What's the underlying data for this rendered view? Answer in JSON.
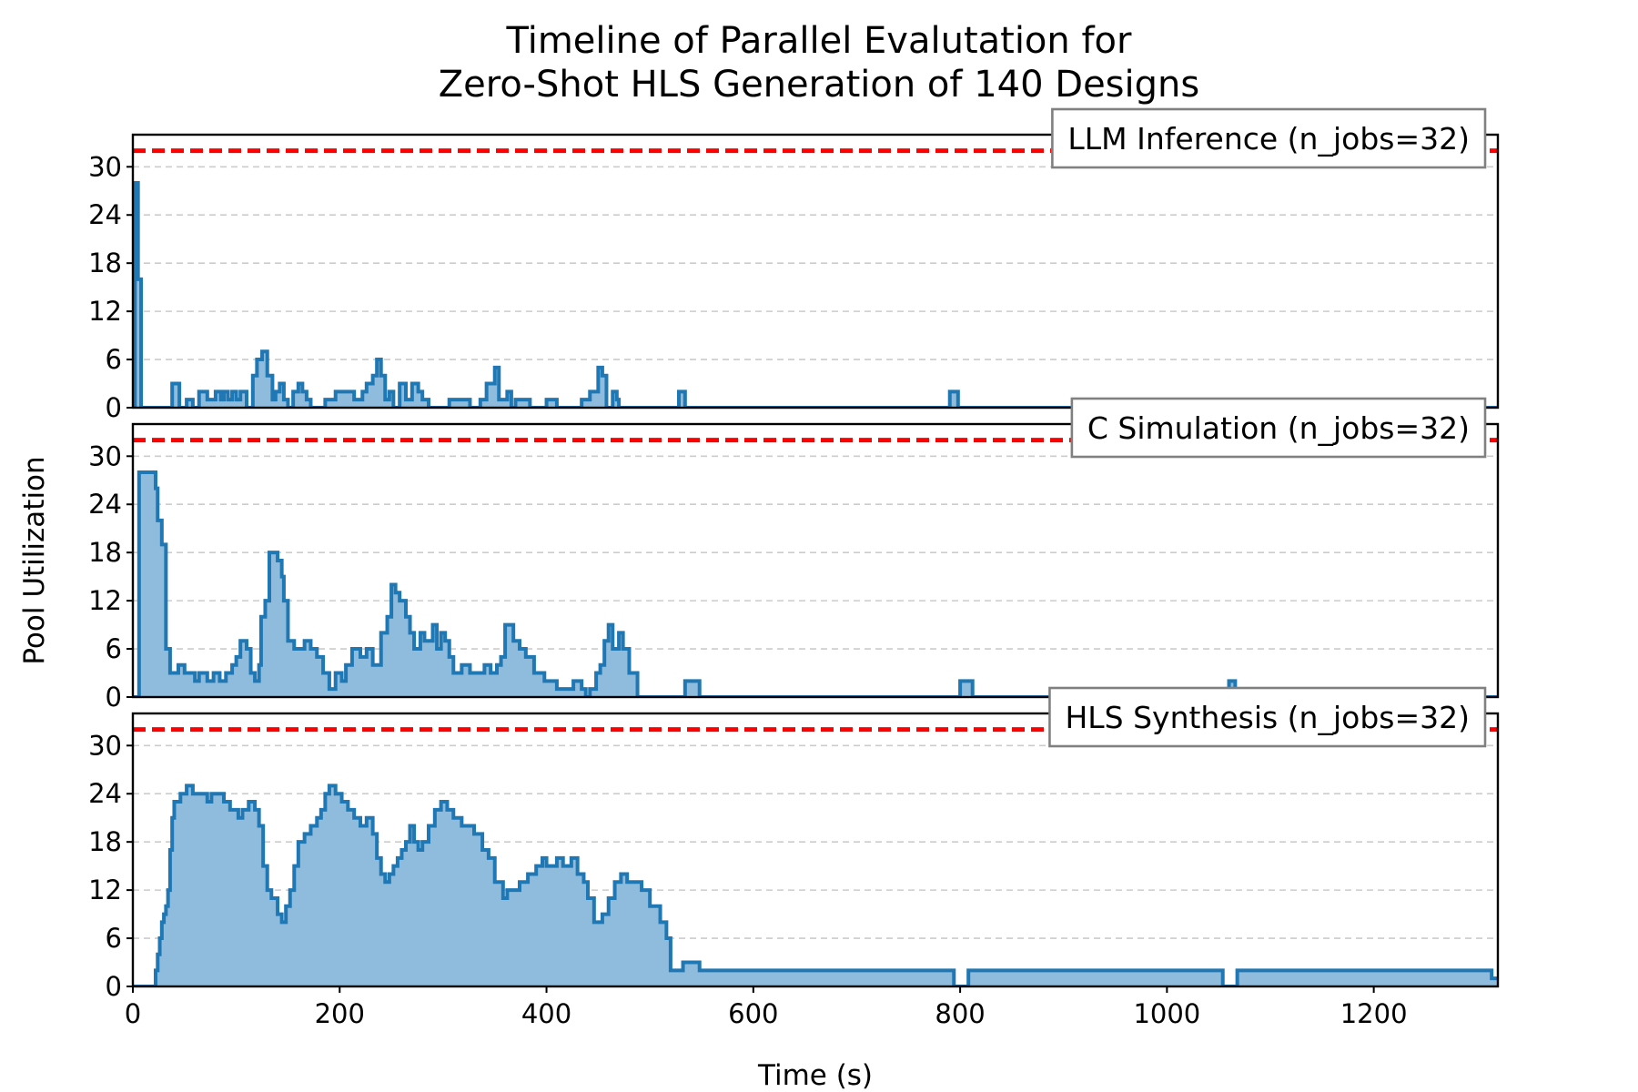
{
  "chart_data": {
    "type": "area",
    "title_lines": [
      "Timeline of Parallel Evalutation for",
      "Zero-Shot HLS Generation of 140 Designs"
    ],
    "xlabel": "Time (s)",
    "ylabel": "Pool Utilization",
    "xlim": [
      0,
      1320
    ],
    "xticks": [
      0,
      200,
      400,
      600,
      800,
      1000,
      1200
    ],
    "ylim": [
      0,
      34
    ],
    "yticks": [
      0,
      6,
      12,
      18,
      24,
      30
    ],
    "grid": "horizontal dashed",
    "colors": {
      "series": "#1f77b4",
      "fill": "#8fbbdc",
      "cap": "#ff0000"
    },
    "panels": [
      {
        "label": "LLM Inference (n_jobs=32)",
        "cap": 32,
        "points": [
          [
            0,
            0
          ],
          [
            2,
            28
          ],
          [
            5,
            16
          ],
          [
            8,
            0
          ],
          [
            36,
            0
          ],
          [
            38,
            3
          ],
          [
            45,
            0
          ],
          [
            52,
            1
          ],
          [
            58,
            0
          ],
          [
            64,
            2
          ],
          [
            72,
            1
          ],
          [
            80,
            2
          ],
          [
            85,
            1
          ],
          [
            88,
            2
          ],
          [
            92,
            1
          ],
          [
            96,
            2
          ],
          [
            100,
            1
          ],
          [
            104,
            2
          ],
          [
            110,
            0
          ],
          [
            116,
            4
          ],
          [
            120,
            6
          ],
          [
            125,
            7
          ],
          [
            130,
            4
          ],
          [
            135,
            1
          ],
          [
            138,
            2
          ],
          [
            142,
            3
          ],
          [
            146,
            1
          ],
          [
            150,
            0
          ],
          [
            155,
            2
          ],
          [
            160,
            3
          ],
          [
            164,
            2
          ],
          [
            168,
            1
          ],
          [
            172,
            0
          ],
          [
            186,
            1
          ],
          [
            196,
            2
          ],
          [
            214,
            1
          ],
          [
            222,
            2
          ],
          [
            226,
            3
          ],
          [
            232,
            4
          ],
          [
            236,
            6
          ],
          [
            240,
            4
          ],
          [
            244,
            1
          ],
          [
            248,
            2
          ],
          [
            252,
            0
          ],
          [
            258,
            3
          ],
          [
            264,
            1
          ],
          [
            270,
            3
          ],
          [
            276,
            2
          ],
          [
            280,
            1
          ],
          [
            286,
            0
          ],
          [
            306,
            1
          ],
          [
            326,
            0
          ],
          [
            336,
            1
          ],
          [
            342,
            3
          ],
          [
            350,
            5
          ],
          [
            354,
            1
          ],
          [
            362,
            2
          ],
          [
            366,
            0
          ],
          [
            370,
            1
          ],
          [
            384,
            0
          ],
          [
            400,
            1
          ],
          [
            410,
            0
          ],
          [
            434,
            1
          ],
          [
            442,
            2
          ],
          [
            450,
            5
          ],
          [
            454,
            4
          ],
          [
            458,
            0
          ],
          [
            464,
            2
          ],
          [
            468,
            1
          ],
          [
            470,
            0
          ],
          [
            528,
            2
          ],
          [
            534,
            0
          ],
          [
            790,
            2
          ],
          [
            798,
            0
          ],
          [
            1320,
            0
          ]
        ]
      },
      {
        "label": "C Simulation (n_jobs=32)",
        "cap": 32,
        "points": [
          [
            0,
            0
          ],
          [
            6,
            28
          ],
          [
            22,
            26
          ],
          [
            24,
            22
          ],
          [
            28,
            19
          ],
          [
            32,
            6
          ],
          [
            36,
            3
          ],
          [
            44,
            4
          ],
          [
            50,
            3
          ],
          [
            60,
            2
          ],
          [
            64,
            3
          ],
          [
            72,
            2
          ],
          [
            78,
            3
          ],
          [
            84,
            2
          ],
          [
            90,
            3
          ],
          [
            96,
            4
          ],
          [
            100,
            5
          ],
          [
            104,
            7
          ],
          [
            110,
            6
          ],
          [
            114,
            3
          ],
          [
            118,
            2
          ],
          [
            122,
            4
          ],
          [
            124,
            10
          ],
          [
            128,
            12
          ],
          [
            132,
            18
          ],
          [
            140,
            17
          ],
          [
            144,
            15
          ],
          [
            146,
            12
          ],
          [
            150,
            7
          ],
          [
            156,
            6
          ],
          [
            166,
            7
          ],
          [
            172,
            6
          ],
          [
            178,
            5
          ],
          [
            184,
            3
          ],
          [
            190,
            1
          ],
          [
            196,
            3
          ],
          [
            202,
            2
          ],
          [
            206,
            4
          ],
          [
            212,
            6
          ],
          [
            220,
            5
          ],
          [
            226,
            6
          ],
          [
            232,
            4
          ],
          [
            240,
            8
          ],
          [
            246,
            10
          ],
          [
            250,
            14
          ],
          [
            254,
            13
          ],
          [
            258,
            12
          ],
          [
            264,
            10
          ],
          [
            268,
            8
          ],
          [
            272,
            6
          ],
          [
            278,
            8
          ],
          [
            282,
            7
          ],
          [
            290,
            9
          ],
          [
            294,
            6
          ],
          [
            298,
            8
          ],
          [
            302,
            7
          ],
          [
            306,
            5
          ],
          [
            310,
            3
          ],
          [
            318,
            4
          ],
          [
            326,
            3
          ],
          [
            340,
            4
          ],
          [
            346,
            3
          ],
          [
            352,
            4
          ],
          [
            356,
            5
          ],
          [
            360,
            9
          ],
          [
            368,
            7
          ],
          [
            374,
            6
          ],
          [
            380,
            5
          ],
          [
            388,
            3
          ],
          [
            398,
            2
          ],
          [
            410,
            1
          ],
          [
            426,
            2
          ],
          [
            434,
            1
          ],
          [
            438,
            0
          ],
          [
            442,
            1
          ],
          [
            448,
            3
          ],
          [
            452,
            4
          ],
          [
            456,
            7
          ],
          [
            460,
            9
          ],
          [
            464,
            6
          ],
          [
            470,
            8
          ],
          [
            474,
            6
          ],
          [
            480,
            3
          ],
          [
            488,
            0
          ],
          [
            534,
            2
          ],
          [
            548,
            0
          ],
          [
            800,
            2
          ],
          [
            812,
            0
          ],
          [
            1060,
            2
          ],
          [
            1066,
            0
          ],
          [
            1320,
            0
          ]
        ]
      },
      {
        "label": "HLS Synthesis (n_jobs=32)",
        "cap": 32,
        "points": [
          [
            0,
            0
          ],
          [
            20,
            0
          ],
          [
            22,
            2
          ],
          [
            24,
            4
          ],
          [
            26,
            6
          ],
          [
            28,
            8
          ],
          [
            30,
            9
          ],
          [
            32,
            10
          ],
          [
            34,
            12
          ],
          [
            36,
            17
          ],
          [
            38,
            21
          ],
          [
            40,
            23
          ],
          [
            46,
            24
          ],
          [
            52,
            25
          ],
          [
            58,
            24
          ],
          [
            72,
            23
          ],
          [
            76,
            24
          ],
          [
            88,
            23
          ],
          [
            94,
            22
          ],
          [
            102,
            21
          ],
          [
            106,
            22
          ],
          [
            112,
            23
          ],
          [
            118,
            22
          ],
          [
            122,
            20
          ],
          [
            126,
            15
          ],
          [
            130,
            12
          ],
          [
            134,
            11
          ],
          [
            140,
            9
          ],
          [
            144,
            8
          ],
          [
            148,
            10
          ],
          [
            152,
            12
          ],
          [
            156,
            15
          ],
          [
            160,
            18
          ],
          [
            166,
            19
          ],
          [
            172,
            20
          ],
          [
            178,
            21
          ],
          [
            182,
            22
          ],
          [
            186,
            24
          ],
          [
            190,
            25
          ],
          [
            196,
            24
          ],
          [
            202,
            23
          ],
          [
            208,
            22
          ],
          [
            214,
            21
          ],
          [
            220,
            20
          ],
          [
            226,
            21
          ],
          [
            232,
            19
          ],
          [
            236,
            16
          ],
          [
            240,
            14
          ],
          [
            244,
            13
          ],
          [
            248,
            14
          ],
          [
            252,
            15
          ],
          [
            256,
            16
          ],
          [
            260,
            17
          ],
          [
            264,
            18
          ],
          [
            268,
            20
          ],
          [
            272,
            18
          ],
          [
            276,
            17
          ],
          [
            280,
            18
          ],
          [
            286,
            20
          ],
          [
            292,
            22
          ],
          [
            298,
            23
          ],
          [
            304,
            22
          ],
          [
            310,
            21
          ],
          [
            318,
            20
          ],
          [
            330,
            19
          ],
          [
            338,
            17
          ],
          [
            344,
            16
          ],
          [
            350,
            13
          ],
          [
            358,
            11
          ],
          [
            362,
            12
          ],
          [
            374,
            13
          ],
          [
            382,
            14
          ],
          [
            390,
            15
          ],
          [
            396,
            16
          ],
          [
            400,
            15
          ],
          [
            410,
            16
          ],
          [
            416,
            15
          ],
          [
            424,
            16
          ],
          [
            430,
            14
          ],
          [
            436,
            13
          ],
          [
            440,
            11
          ],
          [
            446,
            8
          ],
          [
            454,
            9
          ],
          [
            460,
            11
          ],
          [
            466,
            13
          ],
          [
            472,
            14
          ],
          [
            478,
            13
          ],
          [
            492,
            12
          ],
          [
            500,
            10
          ],
          [
            510,
            8
          ],
          [
            516,
            6
          ],
          [
            520,
            2
          ],
          [
            532,
            3
          ],
          [
            548,
            2
          ],
          [
            790,
            2
          ],
          [
            794,
            0
          ],
          [
            800,
            0
          ],
          [
            808,
            2
          ],
          [
            1050,
            2
          ],
          [
            1054,
            0
          ],
          [
            1060,
            0
          ],
          [
            1068,
            2
          ],
          [
            1310,
            2
          ],
          [
            1314,
            1
          ],
          [
            1320,
            1
          ]
        ]
      }
    ]
  }
}
